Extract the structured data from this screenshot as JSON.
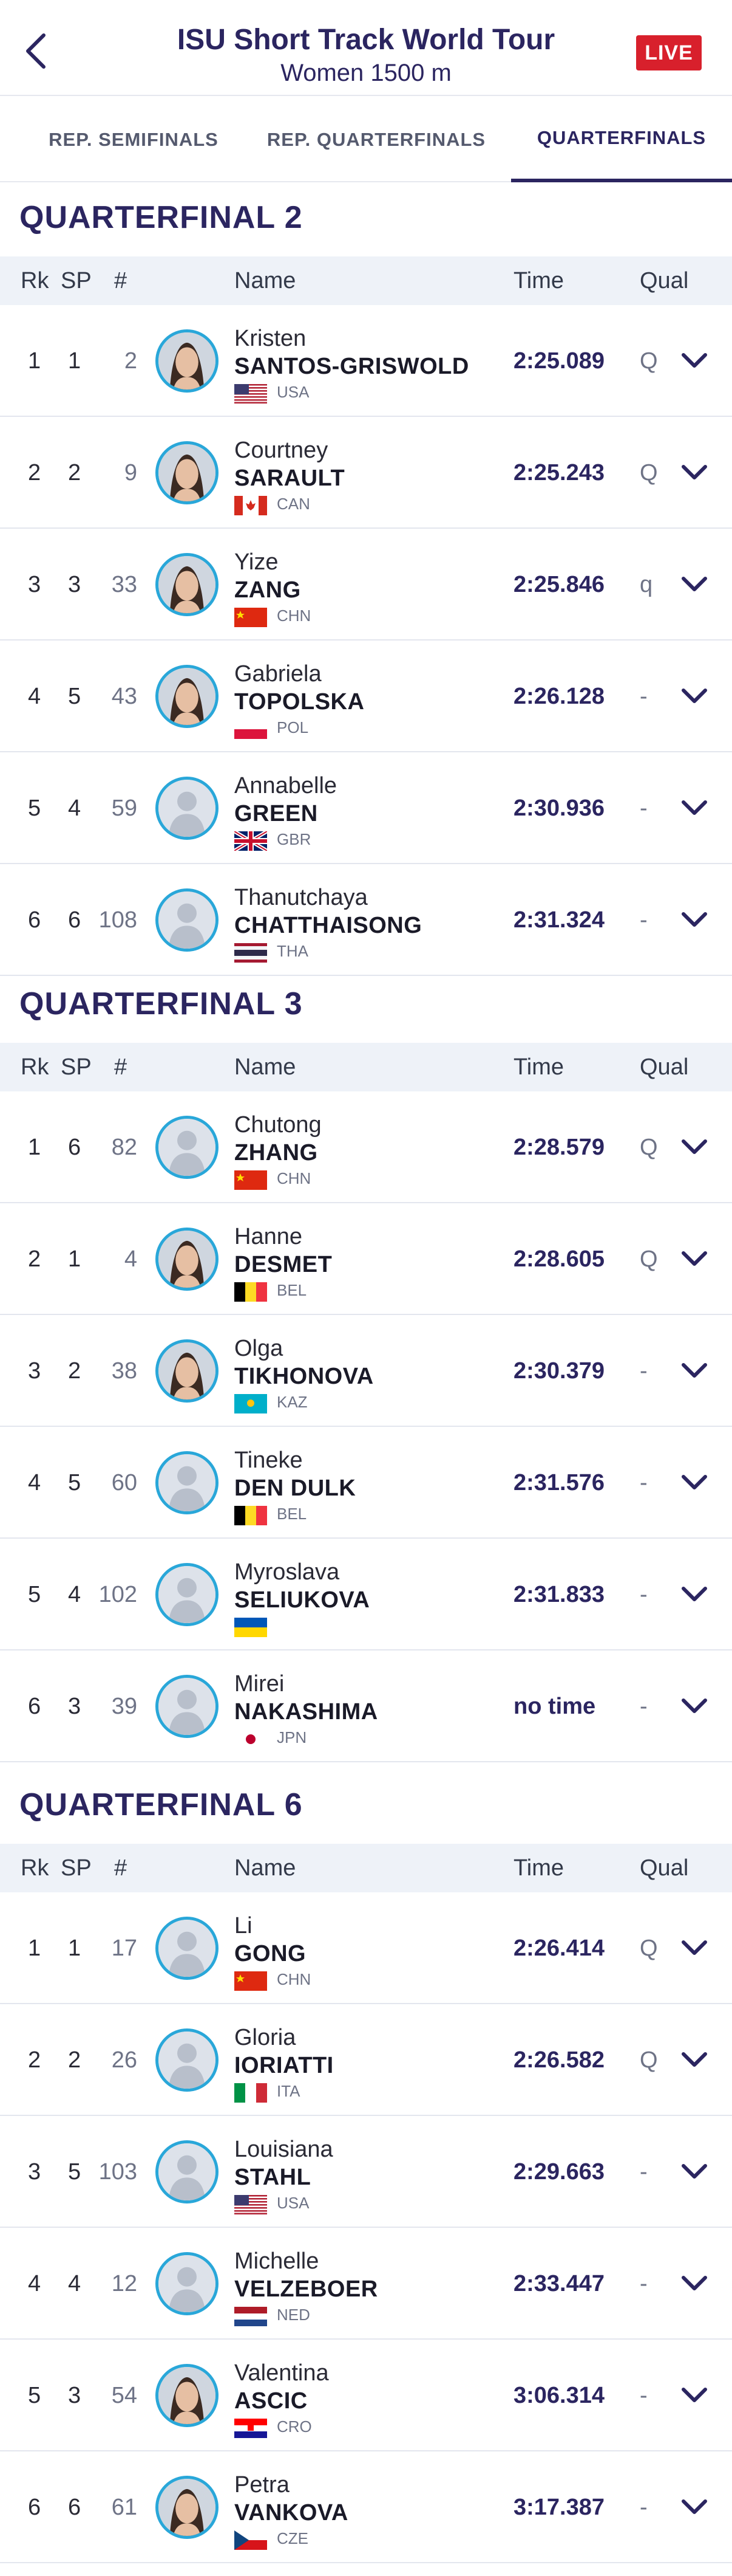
{
  "header": {
    "title": "ISU Short Track World Tour",
    "subtitle": "Women 1500 m",
    "live_label": "LIVE"
  },
  "tabs": [
    {
      "label": "REP. SEMIFINALS"
    },
    {
      "label": "REP. QUARTERFINALS"
    },
    {
      "label": "QUARTERFINALS",
      "active": true
    }
  ],
  "columns": {
    "rk": "Rk",
    "sp": "SP",
    "no": "#",
    "name": "Name",
    "time": "Time",
    "qual": "Qual"
  },
  "sections": [
    {
      "title": "QUARTERFINAL 2",
      "rows": [
        {
          "rk": "1",
          "sp": "1",
          "no": "2",
          "first": "Kristen",
          "last": "SANTOS-GRISWOLD",
          "country": "USA",
          "time": "2:25.089",
          "qual": "Q",
          "photo": true
        },
        {
          "rk": "2",
          "sp": "2",
          "no": "9",
          "first": "Courtney",
          "last": "SARAULT",
          "country": "CAN",
          "time": "2:25.243",
          "qual": "Q",
          "photo": true
        },
        {
          "rk": "3",
          "sp": "3",
          "no": "33",
          "first": "Yize",
          "last": "ZANG",
          "country": "CHN",
          "time": "2:25.846",
          "qual": "q",
          "photo": true
        },
        {
          "rk": "4",
          "sp": "5",
          "no": "43",
          "first": "Gabriela",
          "last": "TOPOLSKA",
          "country": "POL",
          "time": "2:26.128",
          "qual": "-",
          "photo": true
        },
        {
          "rk": "5",
          "sp": "4",
          "no": "59",
          "first": "Annabelle",
          "last": "GREEN",
          "country": "GBR",
          "time": "2:30.936",
          "qual": "-",
          "photo": false
        },
        {
          "rk": "6",
          "sp": "6",
          "no": "108",
          "first": "Thanutchaya",
          "last": "CHATTHAISONG",
          "country": "THA",
          "time": "2:31.324",
          "qual": "-",
          "photo": false
        }
      ]
    },
    {
      "title": "QUARTERFINAL 3",
      "rows": [
        {
          "rk": "1",
          "sp": "6",
          "no": "82",
          "first": "Chutong",
          "last": "ZHANG",
          "country": "CHN",
          "time": "2:28.579",
          "qual": "Q",
          "photo": false
        },
        {
          "rk": "2",
          "sp": "1",
          "no": "4",
          "first": "Hanne",
          "last": "DESMET",
          "country": "BEL",
          "time": "2:28.605",
          "qual": "Q",
          "photo": true
        },
        {
          "rk": "3",
          "sp": "2",
          "no": "38",
          "first": "Olga",
          "last": "TIKHONOVA",
          "country": "KAZ",
          "time": "2:30.379",
          "qual": "-",
          "photo": true
        },
        {
          "rk": "4",
          "sp": "5",
          "no": "60",
          "first": "Tineke",
          "last": "DEN DULK",
          "country": "BEL",
          "time": "2:31.576",
          "qual": "-",
          "photo": false
        },
        {
          "rk": "5",
          "sp": "4",
          "no": "102",
          "first": "Myroslava",
          "last": "SELIUKOVA",
          "country": "",
          "flag": "UKR",
          "time": "2:31.833",
          "qual": "-",
          "photo": false
        },
        {
          "rk": "6",
          "sp": "3",
          "no": "39",
          "first": "Mirei",
          "last": "NAKASHIMA",
          "country": "JPN",
          "time": "no time",
          "qual": "-",
          "photo": false
        }
      ]
    },
    {
      "title": "QUARTERFINAL 6",
      "rows": [
        {
          "rk": "1",
          "sp": "1",
          "no": "17",
          "first": "Li",
          "last": "GONG",
          "country": "CHN",
          "time": "2:26.414",
          "qual": "Q",
          "photo": false
        },
        {
          "rk": "2",
          "sp": "2",
          "no": "26",
          "first": "Gloria",
          "last": "IORIATTI",
          "country": "ITA",
          "time": "2:26.582",
          "qual": "Q",
          "photo": false
        },
        {
          "rk": "3",
          "sp": "5",
          "no": "103",
          "first": "Louisiana",
          "last": "STAHL",
          "country": "USA",
          "time": "2:29.663",
          "qual": "-",
          "photo": false
        },
        {
          "rk": "4",
          "sp": "4",
          "no": "12",
          "first": "Michelle",
          "last": "VELZEBOER",
          "country": "NED",
          "time": "2:33.447",
          "qual": "-",
          "photo": false
        },
        {
          "rk": "5",
          "sp": "3",
          "no": "54",
          "first": "Valentina",
          "last": "ASCIC",
          "country": "CRO",
          "time": "3:06.314",
          "qual": "-",
          "photo": true
        },
        {
          "rk": "6",
          "sp": "6",
          "no": "61",
          "first": "Petra",
          "last": "VANKOVA",
          "country": "CZE",
          "time": "3:17.387",
          "qual": "-",
          "photo": true
        }
      ]
    }
  ],
  "colors": {
    "primary": "#2b2560",
    "live": "#d8202c",
    "avatar_ring": "#29a7d9",
    "header_band": "#eef2f8"
  }
}
